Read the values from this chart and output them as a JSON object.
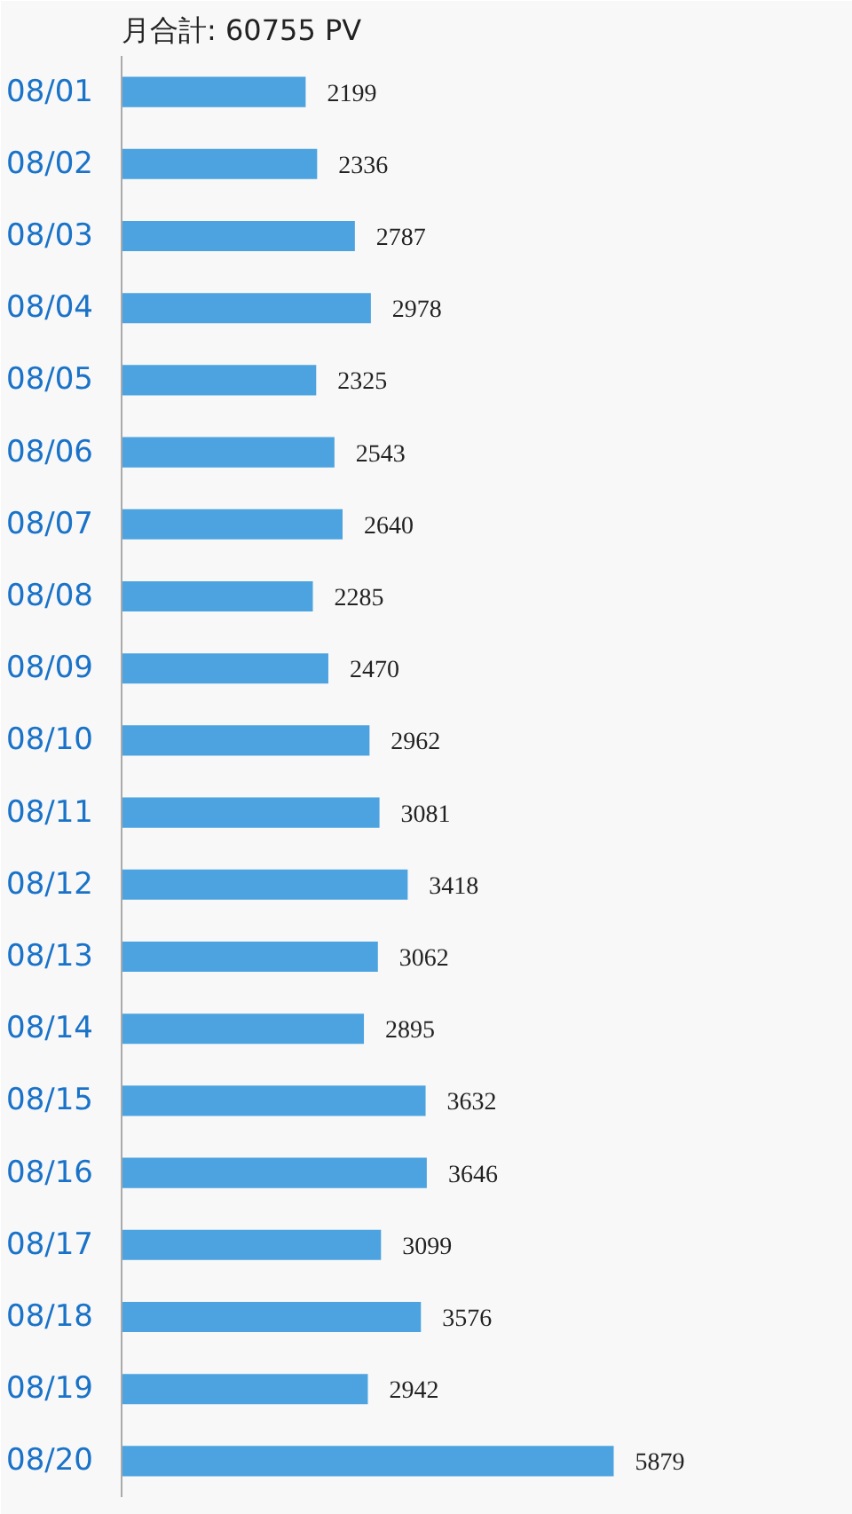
{
  "chart_data": {
    "type": "bar",
    "orientation": "horizontal",
    "title": "月合計: 60755 PV",
    "categories": [
      "08/01",
      "08/02",
      "08/03",
      "08/04",
      "08/05",
      "08/06",
      "08/07",
      "08/08",
      "08/09",
      "08/10",
      "08/11",
      "08/12",
      "08/13",
      "08/14",
      "08/15",
      "08/16",
      "08/17",
      "08/18",
      "08/19",
      "08/20"
    ],
    "values": [
      2199,
      2336,
      2787,
      2978,
      2325,
      2543,
      2640,
      2285,
      2470,
      2962,
      3081,
      3418,
      3062,
      2895,
      3632,
      3646,
      3099,
      3576,
      2942,
      5879
    ],
    "color": "#4ca3e0",
    "data_labels": true
  }
}
